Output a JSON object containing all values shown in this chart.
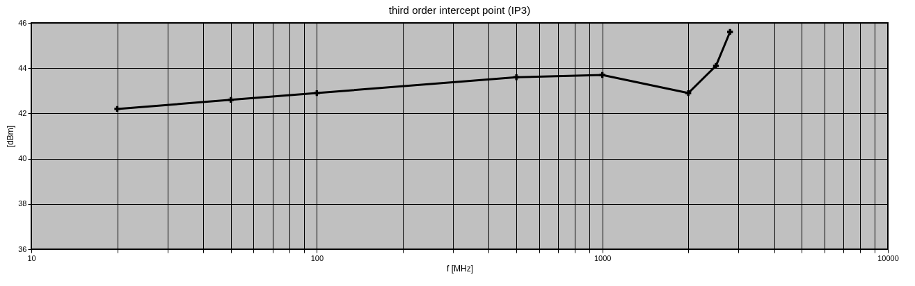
{
  "chart_data": {
    "type": "line",
    "title": "third order intercept point (IP3)",
    "xlabel": "f [MHz]",
    "ylabel": "[dBm]",
    "x": [
      20,
      50,
      100,
      500,
      1000,
      2000,
      2500,
      2800
    ],
    "series": [
      {
        "color": "#000000",
        "values": [
          42.2,
          42.6,
          42.9,
          43.6,
          43.7,
          42.9,
          44.1,
          45.6
        ]
      }
    ],
    "log": "x",
    "xlim": [
      10,
      10000
    ],
    "xticks": [
      10,
      {
        "value": 20,
        "label": null
      },
      {
        "value": 30,
        "label": null
      },
      {
        "value": 40,
        "label": null
      },
      {
        "value": 50,
        "label": null
      },
      {
        "value": 60,
        "label": null
      },
      {
        "value": 70,
        "label": null
      },
      {
        "value": 80,
        "label": null
      },
      {
        "value": 90,
        "label": null
      },
      100,
      {
        "value": 200,
        "label": null
      },
      {
        "value": 300,
        "label": null
      },
      {
        "value": 400,
        "label": null
      },
      {
        "value": 500,
        "label": null
      },
      {
        "value": 600,
        "label": null
      },
      {
        "value": 700,
        "label": null
      },
      {
        "value": 800,
        "label": null
      },
      {
        "value": 900,
        "label": null
      },
      1000,
      {
        "value": 2000,
        "label": null
      },
      {
        "value": 3000,
        "label": null
      },
      {
        "value": 4000,
        "label": null
      },
      {
        "value": 5000,
        "label": null
      },
      {
        "value": 6000,
        "label": null
      },
      {
        "value": 7000,
        "label": null
      },
      {
        "value": 8000,
        "label": null
      },
      {
        "value": 9000,
        "label": null
      },
      10000
    ],
    "ylim": [
      36,
      46
    ],
    "yticks": [
      36,
      38,
      40,
      42,
      44,
      46
    ],
    "grid": true,
    "marker": "cross",
    "line_style": "solid"
  }
}
